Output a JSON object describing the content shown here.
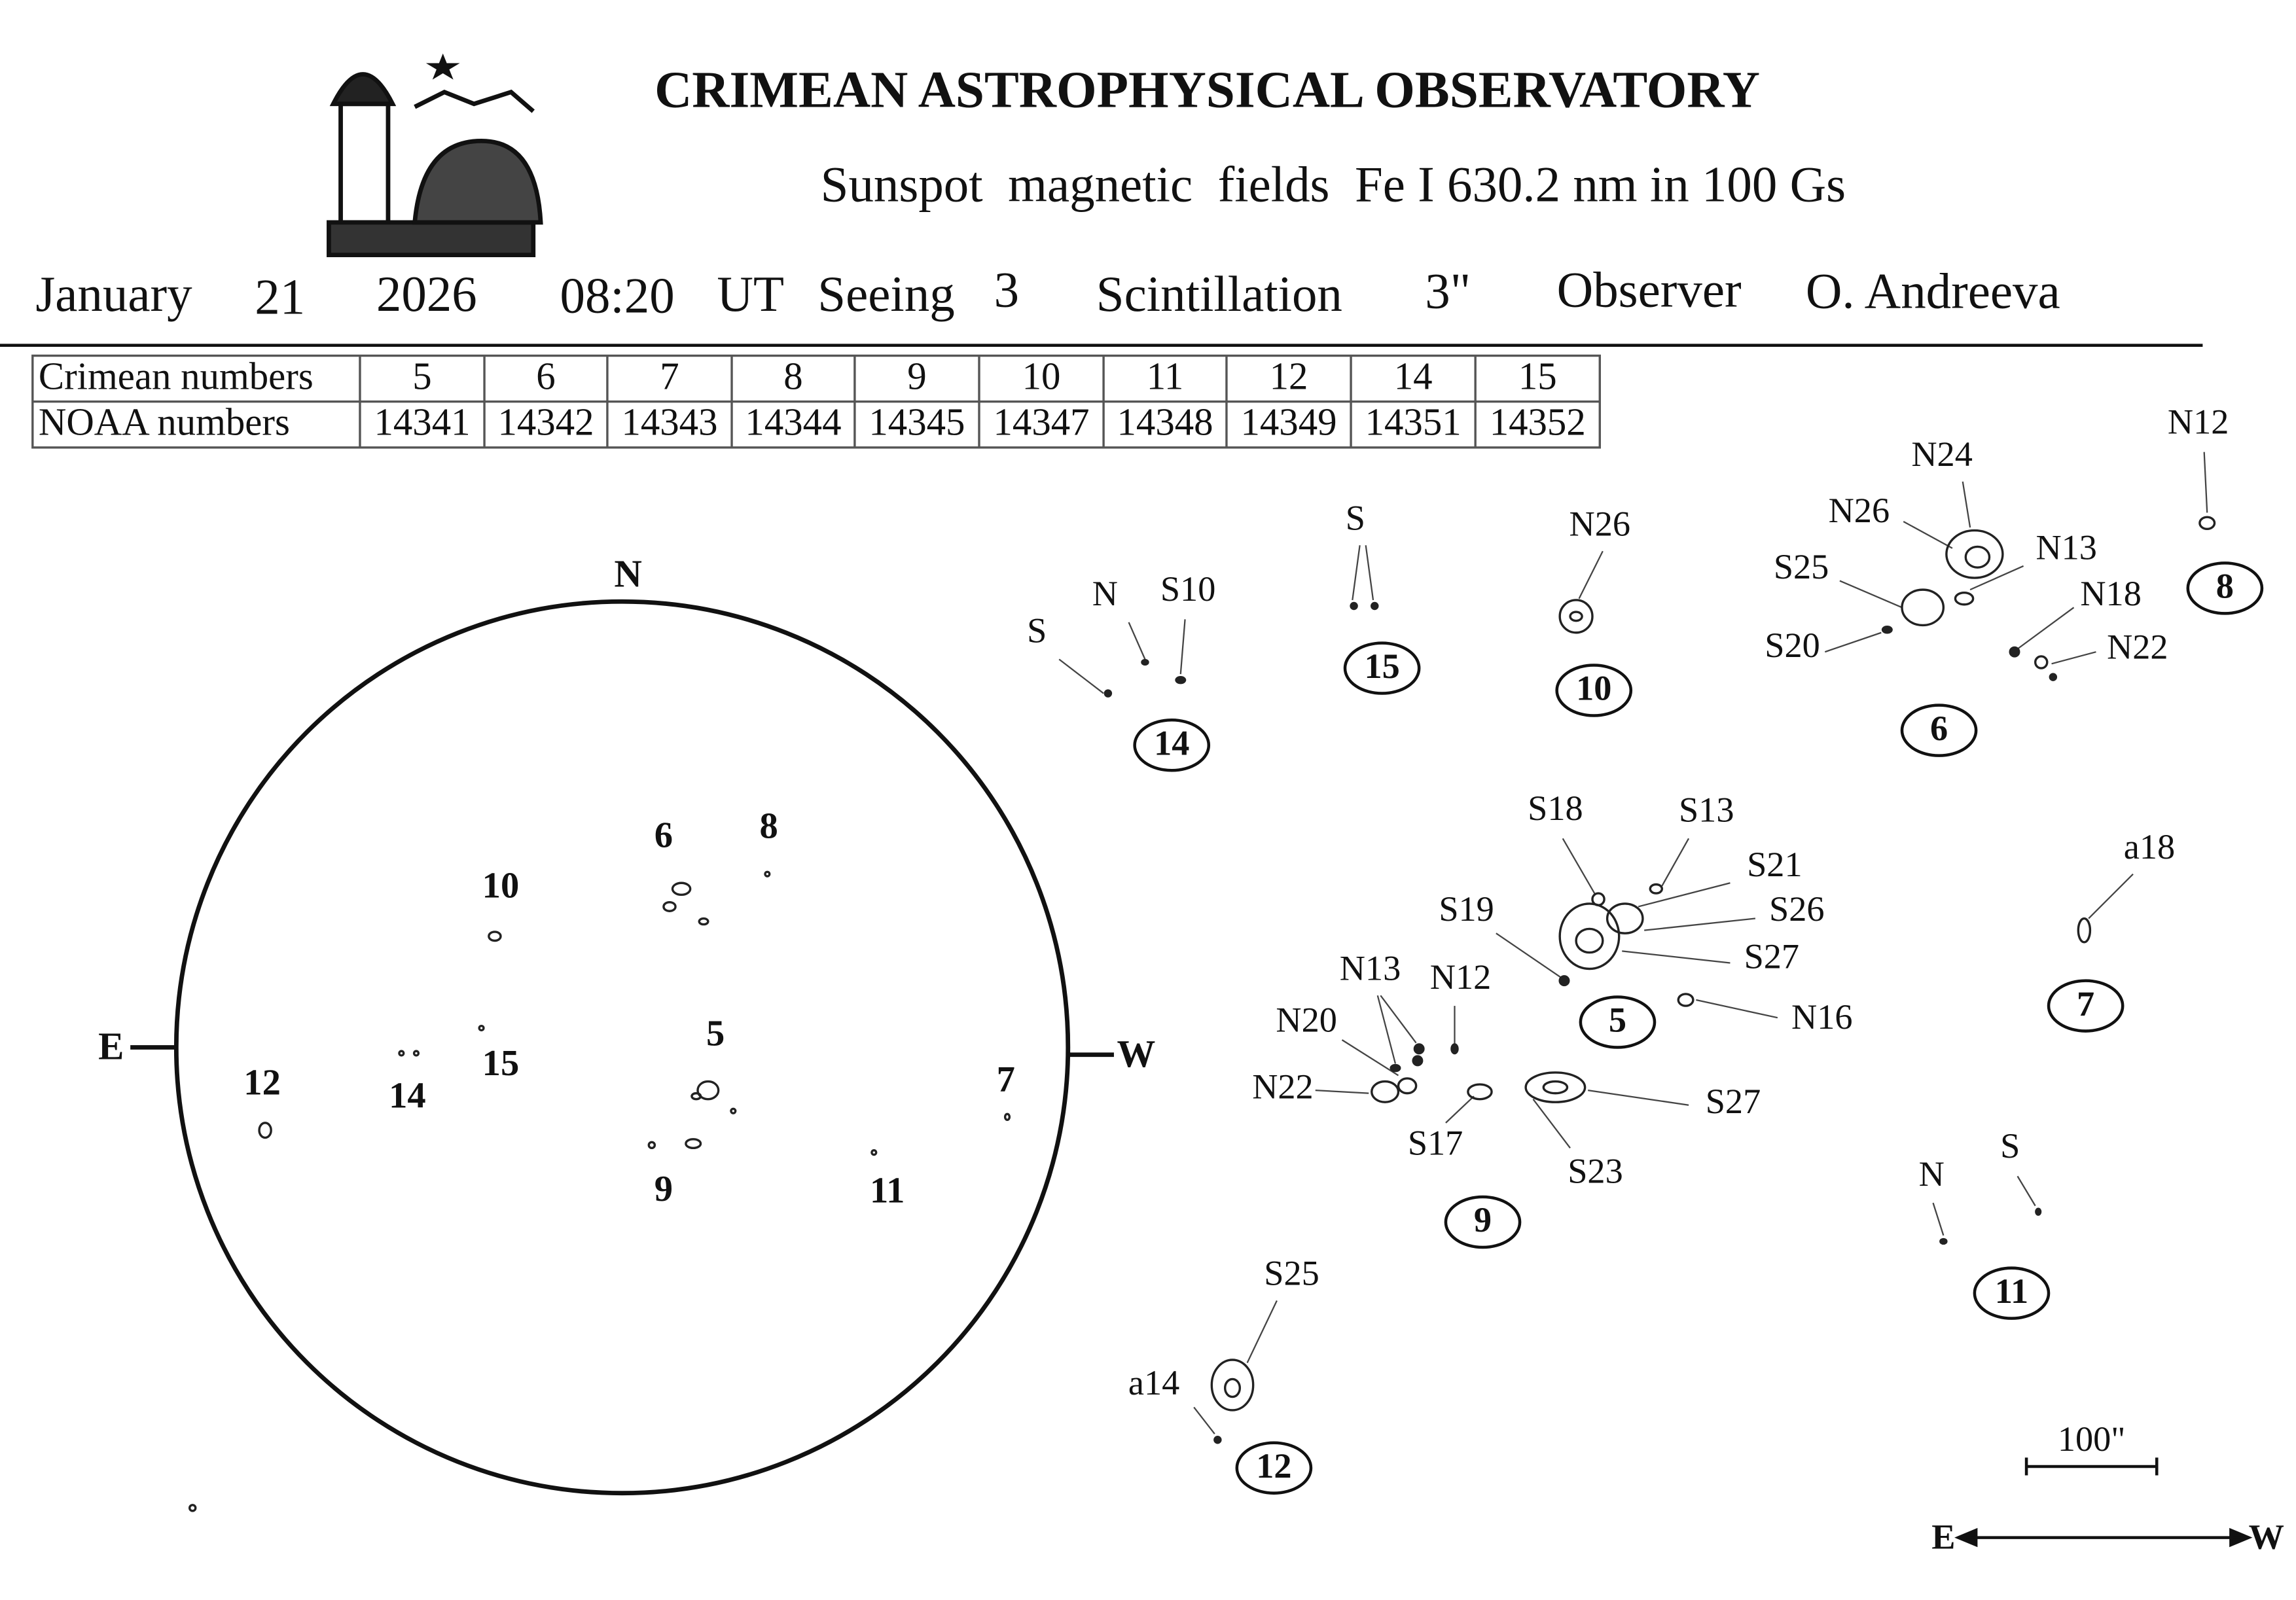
{
  "header": {
    "title": "CRIMEAN ASTROPHYSICAL OBSERVATORY",
    "subtitle": "Sunspot  magnetic  fields  Fe I 630.2 nm in 100 Gs"
  },
  "observation": {
    "month": "January",
    "day": "21",
    "year": "2026",
    "time": "08:20",
    "timezone": "UT",
    "seeing_label": "Seeing",
    "seeing": "3",
    "scintillation_label": "Scintillation",
    "scintillation": "3\"",
    "observer_label": "Observer",
    "observer": "O. Andreeva"
  },
  "table": {
    "rows": [
      [
        "Crimean numbers",
        "5",
        "6",
        "7",
        "8",
        "9",
        "10",
        "11",
        "12",
        "14",
        "15"
      ],
      [
        "NOAA numbers",
        "14341",
        "14342",
        "14343",
        "14344",
        "14345",
        "14347",
        "14348",
        "14349",
        "14351",
        "14352"
      ]
    ]
  },
  "disk": {
    "north": "N",
    "east": "E",
    "west": "W",
    "regions": [
      "6",
      "8",
      "10",
      "5",
      "12",
      "14",
      "15",
      "7",
      "9",
      "11"
    ]
  },
  "groups": [
    {
      "id": "14",
      "labels": [
        "S",
        "N",
        "S10"
      ]
    },
    {
      "id": "15",
      "labels": [
        "S"
      ]
    },
    {
      "id": "10",
      "labels": [
        "N26"
      ]
    },
    {
      "id": "6",
      "labels": [
        "N24",
        "N26",
        "N13",
        "S25",
        "N18",
        "S20",
        "N22"
      ]
    },
    {
      "id": "8",
      "labels": [
        "N12"
      ]
    },
    {
      "id": "5",
      "labels": [
        "S18",
        "S13",
        "S21",
        "S26",
        "S19",
        "S27",
        "N16"
      ]
    },
    {
      "id": "7",
      "labels": [
        "a18"
      ]
    },
    {
      "id": "9",
      "labels": [
        "N13",
        "N12",
        "N20",
        "N22",
        "S17",
        "S23",
        "S27"
      ]
    },
    {
      "id": "11",
      "labels": [
        "N",
        "S"
      ]
    },
    {
      "id": "12",
      "labels": [
        "S25",
        "a14"
      ]
    }
  ],
  "scale": {
    "label": "100\"",
    "east": "E",
    "west": "W"
  }
}
